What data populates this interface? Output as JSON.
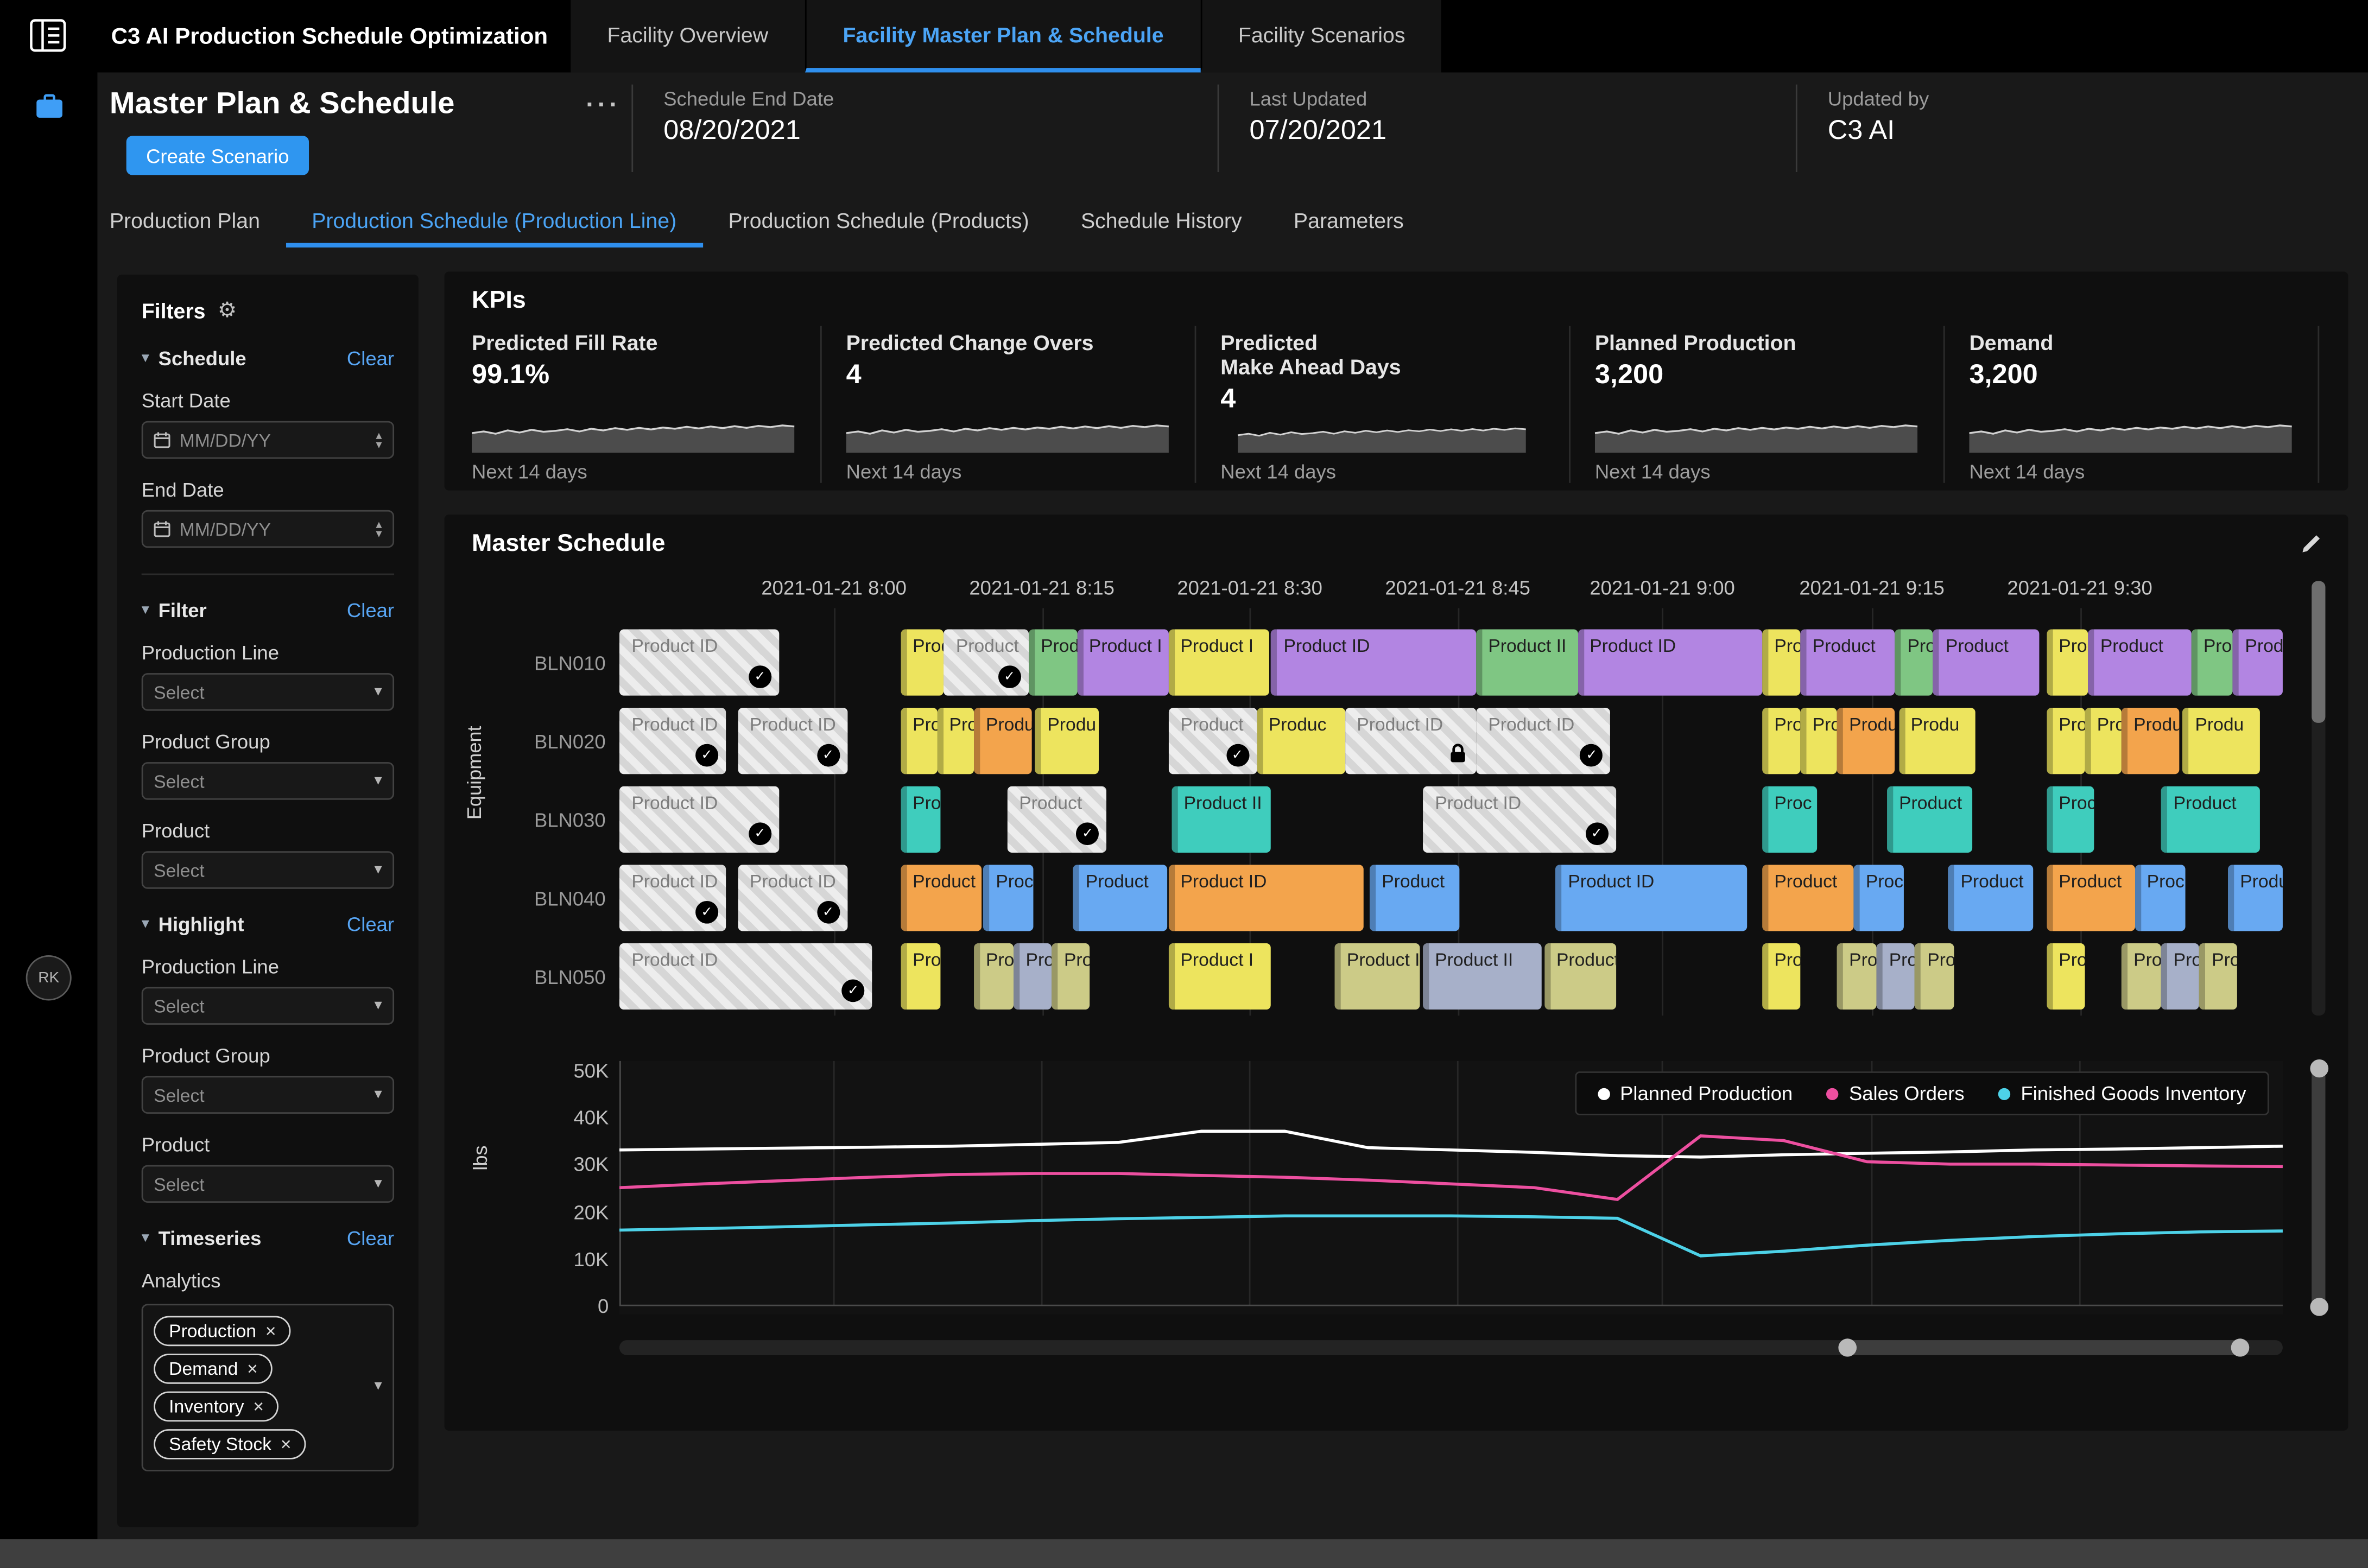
{
  "topbar": {
    "app_title": "C3 AI Production Schedule Optimization",
    "tabs": [
      {
        "label": "Facility Overview",
        "active": false
      },
      {
        "label": "Facility Master Plan & Schedule",
        "active": true
      },
      {
        "label": "Facility Scenarios",
        "active": false
      }
    ]
  },
  "sidebar": {
    "avatar_initials": "RK"
  },
  "header": {
    "title": "Master Plan & Schedule",
    "create_scenario_label": "Create Scenario",
    "meta": [
      {
        "label": "Schedule End Date",
        "value": "08/20/2021"
      },
      {
        "label": "Last Updated",
        "value": "07/20/2021"
      },
      {
        "label": "Updated by",
        "value": "C3 AI"
      }
    ]
  },
  "subtabs": [
    "Production Plan",
    "Production Schedule (Production Line)",
    "Production Schedule (Products)",
    "Schedule History",
    "Parameters"
  ],
  "filters": {
    "title": "Filters",
    "sections": {
      "schedule": {
        "title": "Schedule",
        "clear": "Clear",
        "fields": [
          {
            "label": "Start Date",
            "placeholder": "MM/DD/YY"
          },
          {
            "label": "End Date",
            "placeholder": "MM/DD/YY"
          }
        ]
      },
      "filter": {
        "title": "Filter",
        "clear": "Clear",
        "fields": [
          {
            "label": "Production Line",
            "placeholder": "Select"
          },
          {
            "label": "Product Group",
            "placeholder": "Select"
          },
          {
            "label": "Product",
            "placeholder": "Select"
          }
        ]
      },
      "highlight": {
        "title": "Highlight",
        "clear": "Clear",
        "fields": [
          {
            "label": "Production Line",
            "placeholder": "Select"
          },
          {
            "label": "Product Group",
            "placeholder": "Select"
          },
          {
            "label": "Product",
            "placeholder": "Select"
          }
        ]
      },
      "timeseries": {
        "title": "Timeseries",
        "clear": "Clear",
        "analytics_label": "Analytics",
        "chips": [
          "Production",
          "Demand",
          "Inventory",
          "Safety Stock"
        ]
      }
    }
  },
  "kpis": {
    "title": "KPIs",
    "caption": "Next 14 days",
    "cards": [
      {
        "label": "Predicted Fill Rate",
        "label2": "",
        "value": "99.1%"
      },
      {
        "label": "Predicted Change Overs",
        "label2": "",
        "value": "4"
      },
      {
        "label": "Predicted",
        "label2": "Make Ahead Days",
        "value": "4"
      },
      {
        "label": "Planned Production",
        "label2": "",
        "value": "3,200"
      },
      {
        "label": "Demand",
        "label2": "",
        "value": "3,200"
      }
    ]
  },
  "master_schedule": {
    "title": "Master Schedule"
  },
  "icons": {
    "overflow_menu": "···",
    "gear": "⚙",
    "caret_down": "▾",
    "stepper_up": "▴",
    "stepper_down": "▾",
    "check": "✓",
    "chip_remove": "×"
  },
  "chart_data": [
    {
      "type": "gantt",
      "title": "Master Schedule",
      "y_axis_label": "Equipment",
      "x_ticks": [
        "2021-01-21 8:00",
        "2021-01-21 8:15",
        "2021-01-21 8:30",
        "2021-01-21 8:45",
        "2021-01-21 9:00",
        "2021-01-21 9:15",
        "2021-01-21 9:30"
      ],
      "x_tick_pct": [
        12.9,
        25.4,
        37.9,
        50.4,
        62.7,
        75.3,
        87.8
      ],
      "colors": {
        "hatch": "hatched-completed",
        "yellow": "#ede45e",
        "green": "#7fc683",
        "purple": "#b285e2",
        "orange": "#f3a44c",
        "blue": "#68a9f2",
        "teal": "#3fcdbd",
        "khaki": "#cccb87",
        "slate": "#a7b0c9"
      },
      "rows": [
        {
          "equipment": "BLN010",
          "blocks": [
            {
              "s": 0,
              "w": 9.6,
              "c": "hatch",
              "t": "Product ID",
              "i": "check"
            },
            {
              "s": 16.9,
              "w": 2.6,
              "c": "yellow",
              "t": "Prod"
            },
            {
              "s": 19.5,
              "w": 5.1,
              "c": "hatch",
              "t": "Product",
              "i": "check"
            },
            {
              "s": 24.6,
              "w": 2.9,
              "c": "green",
              "t": "Prod"
            },
            {
              "s": 27.5,
              "w": 5.5,
              "c": "purple",
              "t": "Product I"
            },
            {
              "s": 33.0,
              "w": 6.1,
              "c": "yellow",
              "t": "Product I"
            },
            {
              "s": 39.2,
              "w": 12.3,
              "c": "purple",
              "t": "Product ID"
            },
            {
              "s": 51.5,
              "w": 6.1,
              "c": "green",
              "t": "Product II"
            },
            {
              "s": 57.6,
              "w": 11.1,
              "c": "purple",
              "t": "Product ID"
            },
            {
              "s": 68.7,
              "w": 2.3,
              "c": "yellow",
              "t": "Prod"
            },
            {
              "s": 71.0,
              "w": 5.7,
              "c": "purple",
              "t": "Product"
            },
            {
              "s": 76.7,
              "w": 2.3,
              "c": "green",
              "t": "Prod"
            },
            {
              "s": 79.0,
              "w": 6.4,
              "c": "purple",
              "t": "Product"
            },
            {
              "s": 85.8,
              "w": 2.5,
              "c": "yellow",
              "t": "Prod"
            },
            {
              "s": 88.3,
              "w": 6.2,
              "c": "purple",
              "t": "Product"
            },
            {
              "s": 94.5,
              "w": 2.5,
              "c": "green",
              "t": "Prod"
            },
            {
              "s": 97.0,
              "w": 3.0,
              "c": "purple",
              "t": "Prod"
            }
          ]
        },
        {
          "equipment": "BLN020",
          "blocks": [
            {
              "s": 0,
              "w": 6.4,
              "c": "hatch",
              "t": "Product ID",
              "i": "check"
            },
            {
              "s": 7.1,
              "w": 6.6,
              "c": "hatch",
              "t": "Product ID",
              "i": "check"
            },
            {
              "s": 16.9,
              "w": 2.2,
              "c": "yellow",
              "t": "Pro"
            },
            {
              "s": 19.1,
              "w": 2.2,
              "c": "yellow",
              "t": "Pro"
            },
            {
              "s": 21.3,
              "w": 3.5,
              "c": "orange",
              "t": "Produ"
            },
            {
              "s": 25.0,
              "w": 3.8,
              "c": "yellow",
              "t": "Produ"
            },
            {
              "s": 33.0,
              "w": 5.3,
              "c": "hatch",
              "t": "Product",
              "i": "check"
            },
            {
              "s": 38.3,
              "w": 5.3,
              "c": "yellow",
              "t": "Produc"
            },
            {
              "s": 43.6,
              "w": 7.9,
              "c": "hatch",
              "t": "Product ID",
              "i": "lock"
            },
            {
              "s": 51.5,
              "w": 8.1,
              "c": "hatch",
              "t": "Product ID",
              "i": "check"
            },
            {
              "s": 68.7,
              "w": 2.3,
              "c": "yellow",
              "t": "Pro"
            },
            {
              "s": 71.0,
              "w": 2.2,
              "c": "yellow",
              "t": "Pro"
            },
            {
              "s": 73.2,
              "w": 3.5,
              "c": "orange",
              "t": "Produ"
            },
            {
              "s": 76.9,
              "w": 4.6,
              "c": "yellow",
              "t": "Produ"
            },
            {
              "s": 85.8,
              "w": 2.3,
              "c": "yellow",
              "t": "Pro"
            },
            {
              "s": 88.1,
              "w": 2.2,
              "c": "yellow",
              "t": "Pro"
            },
            {
              "s": 90.3,
              "w": 3.5,
              "c": "orange",
              "t": "Produ"
            },
            {
              "s": 94.0,
              "w": 4.6,
              "c": "yellow",
              "t": "Produ"
            }
          ]
        },
        {
          "equipment": "BLN030",
          "blocks": [
            {
              "s": 0,
              "w": 9.6,
              "c": "hatch",
              "t": "Product ID",
              "i": "check"
            },
            {
              "s": 16.9,
              "w": 2.4,
              "c": "teal",
              "t": "Proc"
            },
            {
              "s": 23.3,
              "w": 6.0,
              "c": "hatch",
              "t": "Product",
              "i": "check"
            },
            {
              "s": 33.2,
              "w": 6.0,
              "c": "teal",
              "t": "Product II"
            },
            {
              "s": 48.3,
              "w": 11.6,
              "c": "hatch",
              "t": "Product ID",
              "i": "check"
            },
            {
              "s": 68.7,
              "w": 3.3,
              "c": "teal",
              "t": "Proc"
            },
            {
              "s": 76.2,
              "w": 5.1,
              "c": "teal",
              "t": "Product"
            },
            {
              "s": 85.8,
              "w": 2.9,
              "c": "teal",
              "t": "Proc"
            },
            {
              "s": 92.7,
              "w": 5.9,
              "c": "teal",
              "t": "Product"
            }
          ]
        },
        {
          "equipment": "BLN040",
          "blocks": [
            {
              "s": 0,
              "w": 6.4,
              "c": "hatch",
              "t": "Product ID",
              "i": "check"
            },
            {
              "s": 7.1,
              "w": 6.6,
              "c": "hatch",
              "t": "Product ID",
              "i": "check"
            },
            {
              "s": 16.9,
              "w": 4.9,
              "c": "orange",
              "t": "Product"
            },
            {
              "s": 21.9,
              "w": 3.0,
              "c": "blue",
              "t": "Proc"
            },
            {
              "s": 27.3,
              "w": 5.6,
              "c": "blue",
              "t": "Product"
            },
            {
              "s": 33.0,
              "w": 11.7,
              "c": "orange",
              "t": "Product ID"
            },
            {
              "s": 45.1,
              "w": 5.4,
              "c": "blue",
              "t": "Product"
            },
            {
              "s": 56.3,
              "w": 11.5,
              "c": "blue",
              "t": "Product ID"
            },
            {
              "s": 68.7,
              "w": 5.5,
              "c": "orange",
              "t": "Product"
            },
            {
              "s": 74.2,
              "w": 3.0,
              "c": "blue",
              "t": "Proc"
            },
            {
              "s": 79.9,
              "w": 5.1,
              "c": "blue",
              "t": "Product"
            },
            {
              "s": 85.8,
              "w": 5.3,
              "c": "orange",
              "t": "Product"
            },
            {
              "s": 91.1,
              "w": 3.0,
              "c": "blue",
              "t": "Proc"
            },
            {
              "s": 96.7,
              "w": 3.3,
              "c": "blue",
              "t": "Produ"
            }
          ]
        },
        {
          "equipment": "BLN050",
          "blocks": [
            {
              "s": 0,
              "w": 15.2,
              "c": "hatch",
              "t": "Product ID",
              "i": "check"
            },
            {
              "s": 16.9,
              "w": 2.4,
              "c": "yellow",
              "t": "Prod"
            },
            {
              "s": 21.3,
              "w": 2.4,
              "c": "khaki",
              "t": "Prod"
            },
            {
              "s": 23.7,
              "w": 2.3,
              "c": "slate",
              "t": "Pro"
            },
            {
              "s": 26.0,
              "w": 2.3,
              "c": "khaki",
              "t": "Pro"
            },
            {
              "s": 33.0,
              "w": 6.2,
              "c": "yellow",
              "t": "Product I"
            },
            {
              "s": 43.0,
              "w": 5.1,
              "c": "khaki",
              "t": "Product II"
            },
            {
              "s": 48.3,
              "w": 7.1,
              "c": "slate",
              "t": "Product II"
            },
            {
              "s": 55.6,
              "w": 4.3,
              "c": "khaki",
              "t": "Product"
            },
            {
              "s": 68.7,
              "w": 2.3,
              "c": "yellow",
              "t": "Prod"
            },
            {
              "s": 73.2,
              "w": 2.4,
              "c": "khaki",
              "t": "Prod"
            },
            {
              "s": 75.6,
              "w": 2.3,
              "c": "slate",
              "t": "Pro"
            },
            {
              "s": 77.9,
              "w": 2.3,
              "c": "khaki",
              "t": "Pro"
            },
            {
              "s": 85.8,
              "w": 2.3,
              "c": "yellow",
              "t": "Prod"
            },
            {
              "s": 90.3,
              "w": 2.4,
              "c": "khaki",
              "t": "Prod"
            },
            {
              "s": 92.7,
              "w": 2.3,
              "c": "slate",
              "t": "Pro"
            },
            {
              "s": 95.0,
              "w": 2.3,
              "c": "khaki",
              "t": "Pro"
            }
          ]
        }
      ]
    },
    {
      "type": "line",
      "ylabel": "lbs",
      "units": "thousand lbs",
      "ylim_k": [
        0,
        50
      ],
      "y_ticks": [
        {
          "label": "50K",
          "v": 50
        },
        {
          "label": "40K",
          "v": 40
        },
        {
          "label": "30K",
          "v": 30
        },
        {
          "label": "20K",
          "v": 20
        },
        {
          "label": "10K",
          "v": 10
        },
        {
          "label": "0",
          "v": 0
        }
      ],
      "legend_position": "top-right",
      "x_pct": [
        0,
        5,
        10,
        15,
        20,
        25,
        30,
        35,
        40,
        45,
        50,
        55,
        60,
        65,
        70,
        75,
        80,
        85,
        90,
        95,
        100
      ],
      "series": [
        {
          "name": "Planned Production",
          "color": "#ffffff",
          "values_k": [
            33,
            33.2,
            33.4,
            33.6,
            33.8,
            34.2,
            34.6,
            37,
            37,
            33.5,
            33,
            32.5,
            31.8,
            31.5,
            32,
            32.3,
            32.6,
            33,
            33.2,
            33.5,
            33.8
          ]
        },
        {
          "name": "Sales Orders",
          "color": "#ed4fa0",
          "values_k": [
            25,
            25.8,
            26.5,
            27.2,
            27.8,
            28,
            28,
            27.6,
            27.2,
            26.6,
            25.8,
            25,
            22.5,
            36,
            35,
            30.5,
            30,
            30,
            29.8,
            29.6,
            29.5
          ]
        },
        {
          "name": "Finished Goods Inventory",
          "color": "#4dd2e8",
          "values_k": [
            16,
            16.3,
            16.7,
            17.1,
            17.5,
            18,
            18.4,
            18.7,
            19,
            19,
            19,
            18.8,
            18.5,
            10.5,
            11.5,
            12.8,
            13.8,
            14.6,
            15.2,
            15.6,
            15.8
          ]
        }
      ]
    },
    {
      "type": "area",
      "name": "kpi-sparkline",
      "caption": "Next 14 days",
      "values": [
        50,
        55,
        48,
        58,
        52,
        60,
        54,
        57,
        62,
        55,
        63,
        58,
        65,
        60,
        66,
        61,
        67,
        63,
        69,
        64,
        70,
        65,
        71,
        66,
        72,
        68,
        73,
        70
      ]
    }
  ]
}
